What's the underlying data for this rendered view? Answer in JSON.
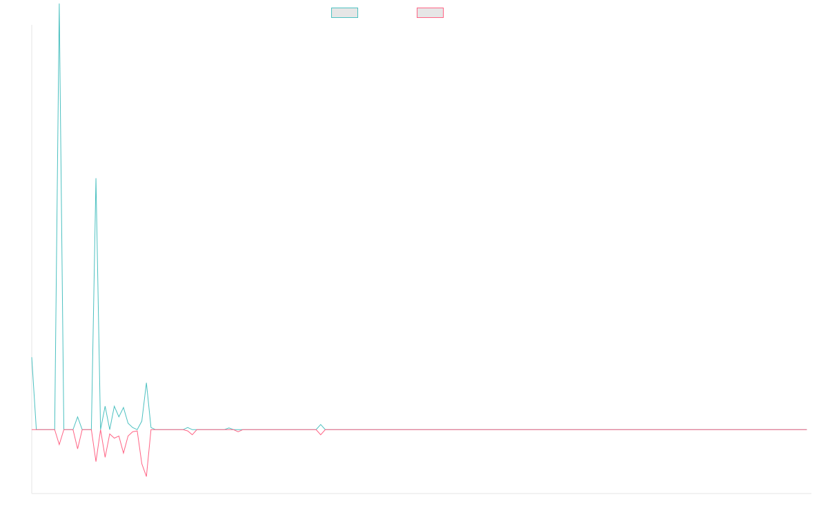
{
  "chart_data": {
    "type": "line",
    "title": "",
    "xlabel": "",
    "ylabel": "",
    "grid": false,
    "legend_position": "top-center",
    "x_count": 171,
    "ylim": [
      -15,
      95
    ],
    "series": [
      {
        "color": "#4bc0c0",
        "values": [
          17,
          0,
          0,
          0,
          0,
          0,
          100,
          0,
          0,
          0,
          3,
          0,
          0,
          0,
          59,
          0,
          5.5,
          0,
          5.5,
          3,
          5.2,
          1.5,
          0.5,
          0,
          2,
          11,
          0.5,
          0,
          0,
          0,
          0,
          0,
          0,
          0,
          0.5,
          0,
          0,
          0,
          0,
          0,
          0,
          0,
          0,
          0.4,
          0,
          0,
          0,
          0,
          0,
          0,
          0,
          0,
          0,
          0,
          0,
          0,
          0,
          0,
          0,
          0,
          0,
          0,
          0,
          1.2,
          0,
          0,
          0,
          0,
          0,
          0,
          0,
          0,
          0,
          0,
          0,
          0,
          0,
          0,
          0,
          0,
          0,
          0,
          0,
          0,
          0,
          0,
          0,
          0,
          0,
          0,
          0,
          0,
          0,
          0,
          0,
          0,
          0,
          0,
          0,
          0,
          0,
          0,
          0,
          0,
          0,
          0,
          0,
          0,
          0,
          0,
          0,
          0,
          0,
          0,
          0,
          0,
          0,
          0,
          0,
          0,
          0,
          0,
          0,
          0,
          0,
          0,
          0,
          0,
          0,
          0,
          0,
          0,
          0,
          0,
          0,
          0,
          0,
          0,
          0,
          0,
          0,
          0,
          0,
          0,
          0,
          0,
          0,
          0,
          0,
          0,
          0,
          0,
          0,
          0,
          0,
          0,
          0,
          0,
          0,
          0,
          0,
          0,
          0,
          0,
          0,
          0,
          0,
          0,
          0,
          0
        ]
      },
      {
        "color": "#ff6384",
        "values": [
          0,
          0,
          0,
          0,
          0,
          0,
          -3.5,
          0,
          0,
          0,
          -4.5,
          0,
          0,
          0,
          -7.5,
          0,
          -6.5,
          -1,
          -2,
          -1.5,
          -5.5,
          -1.5,
          -0.5,
          -0.3,
          -8,
          -11,
          0,
          0,
          0,
          0,
          0,
          0,
          0,
          0,
          -0.3,
          -1.2,
          0,
          0,
          0,
          0,
          0,
          0,
          0,
          0,
          0,
          -0.5,
          0,
          0,
          0,
          0,
          0,
          0,
          0,
          0,
          0,
          0,
          0,
          0,
          0,
          0,
          0,
          0,
          0,
          -1.2,
          0,
          0,
          0,
          0,
          0,
          0,
          0,
          0,
          0,
          0,
          0,
          0,
          0,
          0,
          0,
          0,
          0,
          0,
          0,
          0,
          0,
          0,
          0,
          0,
          0,
          0,
          0,
          0,
          0,
          0,
          0,
          0,
          0,
          0,
          0,
          0,
          0,
          0,
          0,
          0,
          0,
          0,
          0,
          0,
          0,
          0,
          0,
          0,
          0,
          0,
          0,
          0,
          0,
          0,
          0,
          0,
          0,
          0,
          0,
          0,
          0,
          0,
          0,
          0,
          0,
          0,
          0,
          0,
          0,
          0,
          0,
          0,
          0,
          0,
          0,
          0,
          0,
          0,
          0,
          0,
          0,
          0,
          0,
          0,
          0,
          0,
          0,
          0,
          0,
          0,
          0,
          0,
          0,
          0,
          0,
          0,
          0,
          0,
          0,
          0,
          0,
          0,
          0,
          0,
          0,
          0
        ]
      }
    ]
  }
}
